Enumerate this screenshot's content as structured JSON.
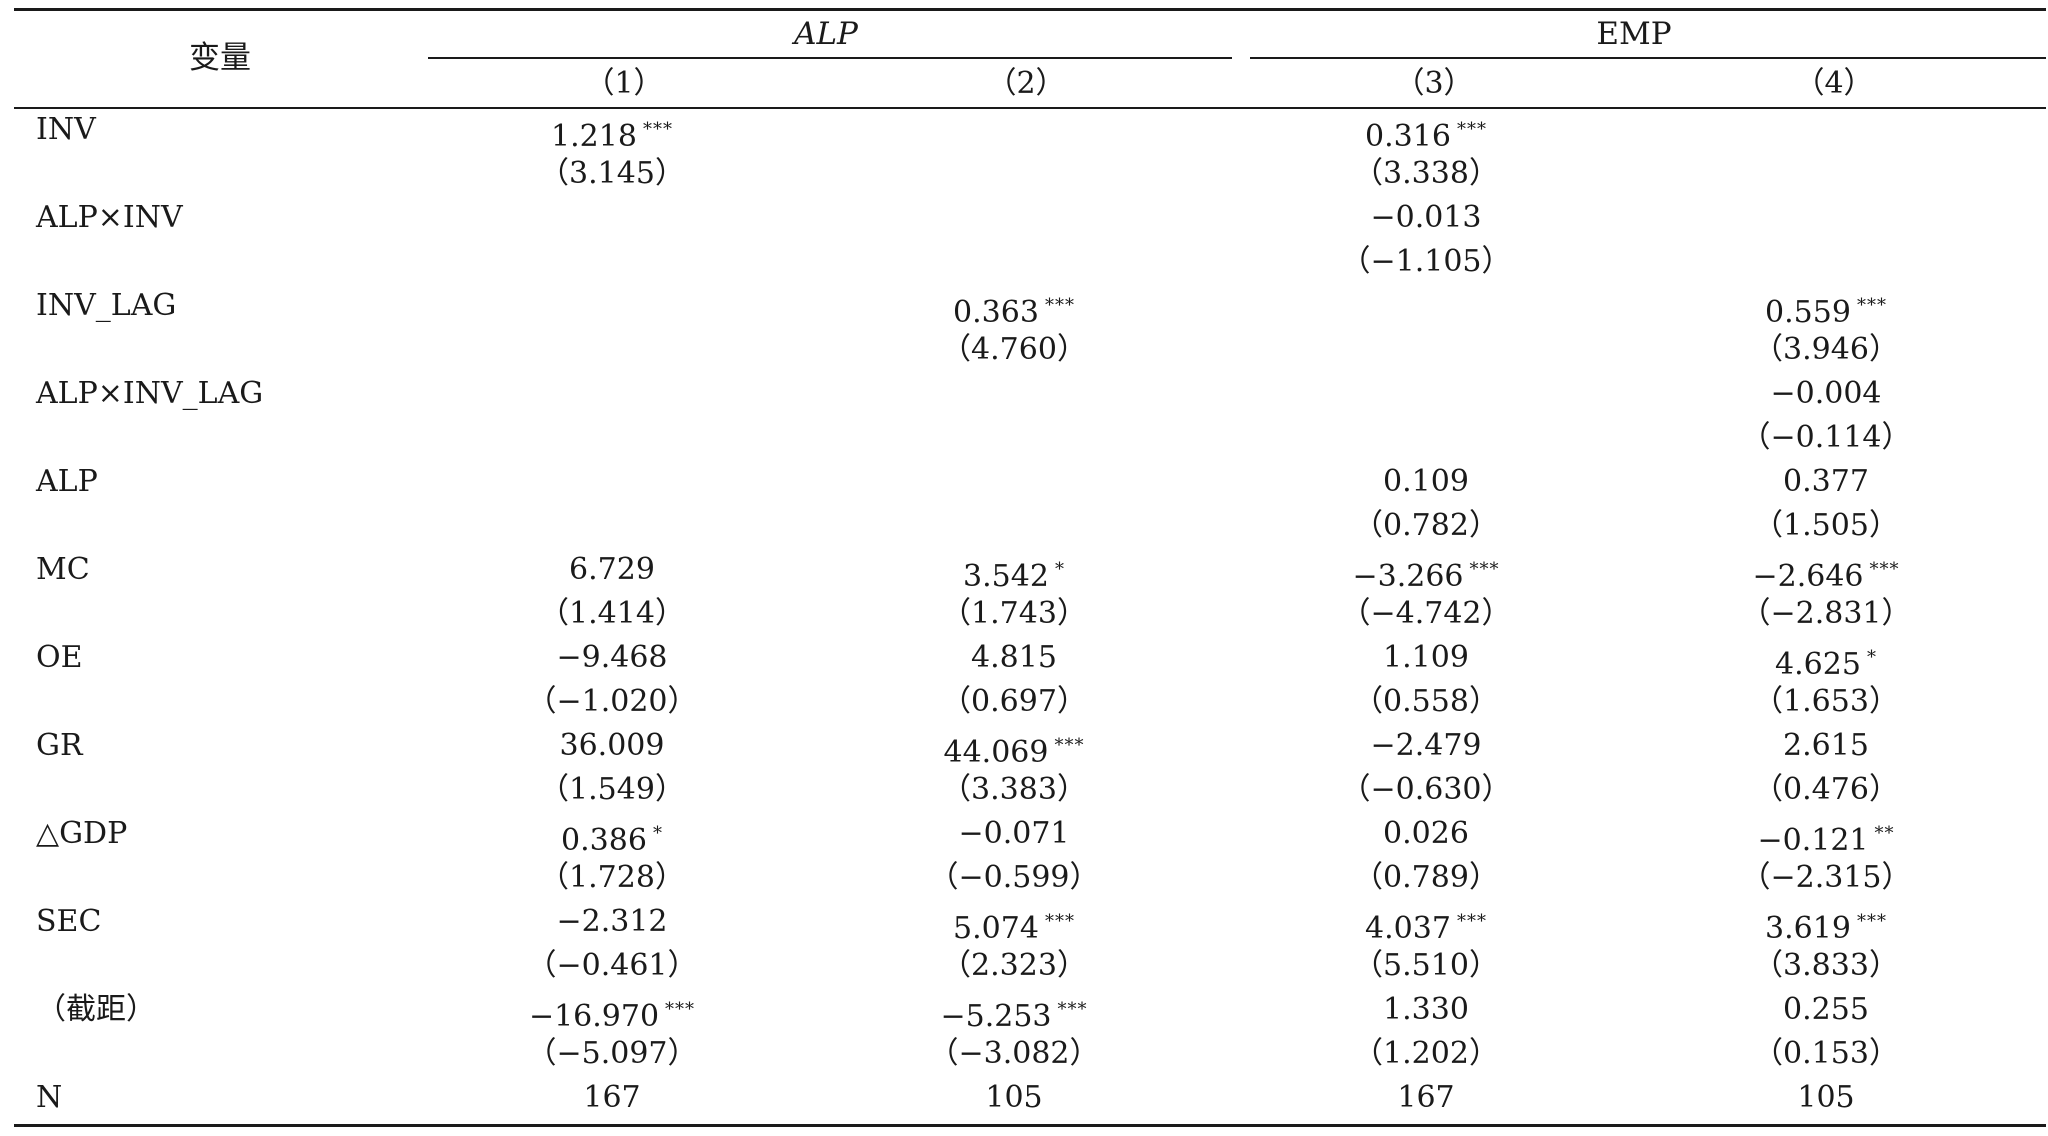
{
  "header": {
    "var_label": "变量",
    "group_alp": "ALP",
    "group_emp": "EMP",
    "col1": "（1）",
    "col2": "（2）",
    "col3": "（3）",
    "col4": "（4）"
  },
  "rows": [
    {
      "label": "INV",
      "c1": {
        "v": "1.218",
        "s": "***"
      },
      "c1p": "（3.145）",
      "c2": {
        "v": "",
        "s": ""
      },
      "c2p": "",
      "c3": {
        "v": "0.316",
        "s": "***"
      },
      "c3p": "（3.338）",
      "c4": {
        "v": "",
        "s": ""
      },
      "c4p": ""
    },
    {
      "label": "ALP×INV",
      "c1": {
        "v": "",
        "s": ""
      },
      "c1p": "",
      "c2": {
        "v": "",
        "s": ""
      },
      "c2p": "",
      "c3": {
        "v": "−0.013",
        "s": ""
      },
      "c3p": "（−1.105）",
      "c4": {
        "v": "",
        "s": ""
      },
      "c4p": ""
    },
    {
      "label": "INV_LAG",
      "c1": {
        "v": "",
        "s": ""
      },
      "c1p": "",
      "c2": {
        "v": "0.363",
        "s": "***"
      },
      "c2p": "（4.760）",
      "c3": {
        "v": "",
        "s": ""
      },
      "c3p": "",
      "c4": {
        "v": "0.559",
        "s": "***"
      },
      "c4p": "（3.946）"
    },
    {
      "label": "ALP×INV_LAG",
      "c1": {
        "v": "",
        "s": ""
      },
      "c1p": "",
      "c2": {
        "v": "",
        "s": ""
      },
      "c2p": "",
      "c3": {
        "v": "",
        "s": ""
      },
      "c3p": "",
      "c4": {
        "v": "−0.004",
        "s": ""
      },
      "c4p": "（−0.114）"
    },
    {
      "label": "ALP",
      "c1": {
        "v": "",
        "s": ""
      },
      "c1p": "",
      "c2": {
        "v": "",
        "s": ""
      },
      "c2p": "",
      "c3": {
        "v": "0.109",
        "s": ""
      },
      "c3p": "（0.782）",
      "c4": {
        "v": "0.377",
        "s": ""
      },
      "c4p": "（1.505）"
    },
    {
      "label": "MC",
      "c1": {
        "v": "6.729",
        "s": ""
      },
      "c1p": "（1.414）",
      "c2": {
        "v": "3.542",
        "s": "*"
      },
      "c2p": "（1.743）",
      "c3": {
        "v": "−3.266",
        "s": "***"
      },
      "c3p": "（−4.742）",
      "c4": {
        "v": "−2.646",
        "s": "***"
      },
      "c4p": "（−2.831）"
    },
    {
      "label": "OE",
      "c1": {
        "v": "−9.468",
        "s": ""
      },
      "c1p": "（−1.020）",
      "c2": {
        "v": "4.815",
        "s": ""
      },
      "c2p": "（0.697）",
      "c3": {
        "v": "1.109",
        "s": ""
      },
      "c3p": "（0.558）",
      "c4": {
        "v": "4.625",
        "s": "*"
      },
      "c4p": "（1.653）"
    },
    {
      "label": "GR",
      "c1": {
        "v": "36.009",
        "s": ""
      },
      "c1p": "（1.549）",
      "c2": {
        "v": "44.069",
        "s": "***"
      },
      "c2p": "（3.383）",
      "c3": {
        "v": "−2.479",
        "s": ""
      },
      "c3p": "（−0.630）",
      "c4": {
        "v": "2.615",
        "s": ""
      },
      "c4p": "（0.476）"
    },
    {
      "label": "△GDP",
      "c1": {
        "v": "0.386",
        "s": "*"
      },
      "c1p": "（1.728）",
      "c2": {
        "v": "−0.071",
        "s": ""
      },
      "c2p": "（−0.599）",
      "c3": {
        "v": "0.026",
        "s": ""
      },
      "c3p": "（0.789）",
      "c4": {
        "v": "−0.121",
        "s": "**"
      },
      "c4p": "（−2.315）"
    },
    {
      "label": "SEC",
      "c1": {
        "v": "−2.312",
        "s": ""
      },
      "c1p": "（−0.461）",
      "c2": {
        "v": "5.074",
        "s": "***"
      },
      "c2p": "（2.323）",
      "c3": {
        "v": "4.037",
        "s": "***"
      },
      "c3p": "（5.510）",
      "c4": {
        "v": "3.619",
        "s": "***"
      },
      "c4p": "（3.833）"
    },
    {
      "label": "（截距）",
      "c1": {
        "v": "−16.970",
        "s": "***"
      },
      "c1p": "（−5.097）",
      "c2": {
        "v": "−5.253",
        "s": "***"
      },
      "c2p": "（−3.082）",
      "c3": {
        "v": "1.330",
        "s": ""
      },
      "c3p": "（1.202）",
      "c4": {
        "v": "0.255",
        "s": ""
      },
      "c4p": "（0.153）"
    }
  ],
  "n_row": {
    "label": "N",
    "c1": "167",
    "c2": "105",
    "c3": "167",
    "c4": "105"
  }
}
